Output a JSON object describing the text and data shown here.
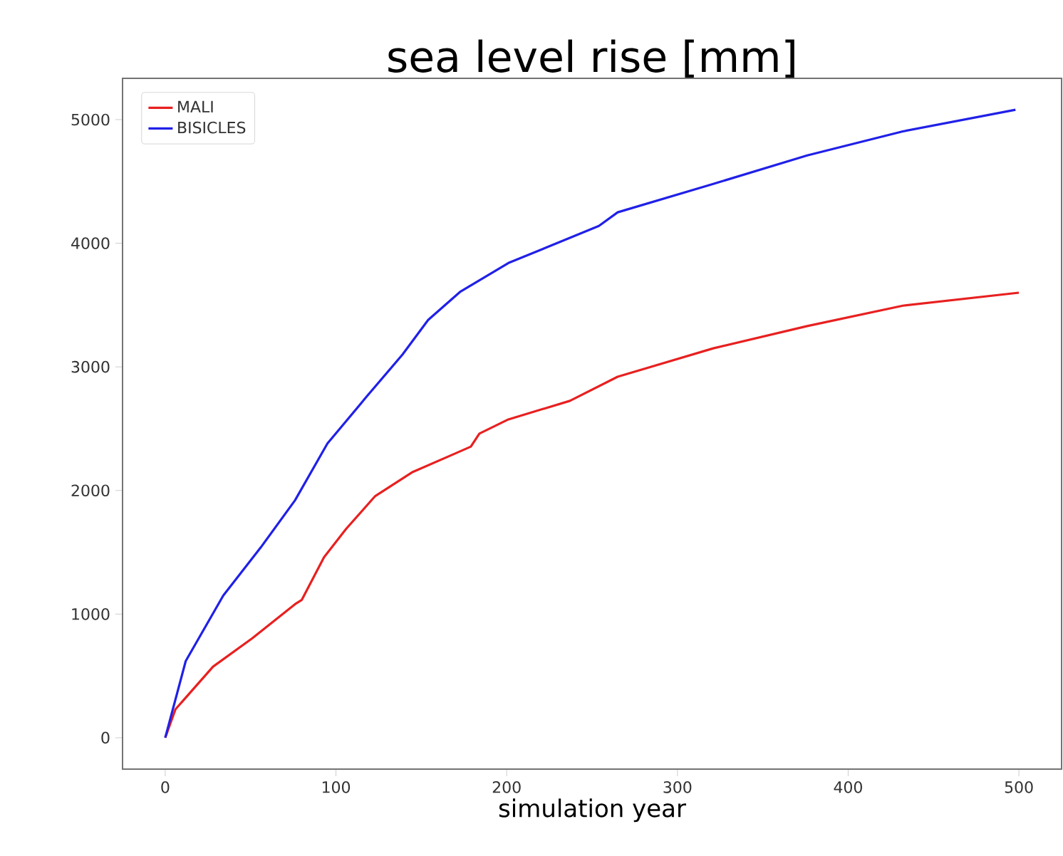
{
  "chart_data": {
    "type": "line",
    "title": "sea level rise [mm]",
    "xlabel": "simulation year",
    "xlim": [
      -25,
      525
    ],
    "ylim": [
      -254,
      5334
    ],
    "xticks": [
      0,
      100,
      200,
      300,
      400,
      500
    ],
    "yticks": [
      0,
      1000,
      2000,
      3000,
      4000,
      5000
    ],
    "legend": "top left",
    "grid": false,
    "marker": "none",
    "line_style": "solid",
    "series": [
      {
        "name": "MALI",
        "color": "#e82020",
        "x": [
          0,
          6,
          28,
          51,
          76,
          80,
          93,
          106,
          123,
          145,
          170,
          179,
          184,
          201,
          237,
          265,
          321,
          376,
          432,
          500
        ],
        "values": [
          0,
          230,
          575,
          805,
          1080,
          1115,
          1460,
          1690,
          1955,
          2150,
          2300,
          2355,
          2460,
          2575,
          2725,
          2920,
          3150,
          3330,
          3495,
          3600
        ]
      },
      {
        "name": "BISICLES",
        "color": "#2020e8",
        "x": [
          0,
          12,
          34,
          56,
          76,
          95,
          118,
          139,
          154,
          173,
          201,
          254,
          265,
          321,
          376,
          432,
          498
        ],
        "values": [
          0,
          620,
          1150,
          1540,
          1920,
          2380,
          2760,
          3100,
          3380,
          3610,
          3840,
          4140,
          4250,
          4480,
          4710,
          4905,
          5080
        ]
      }
    ]
  }
}
